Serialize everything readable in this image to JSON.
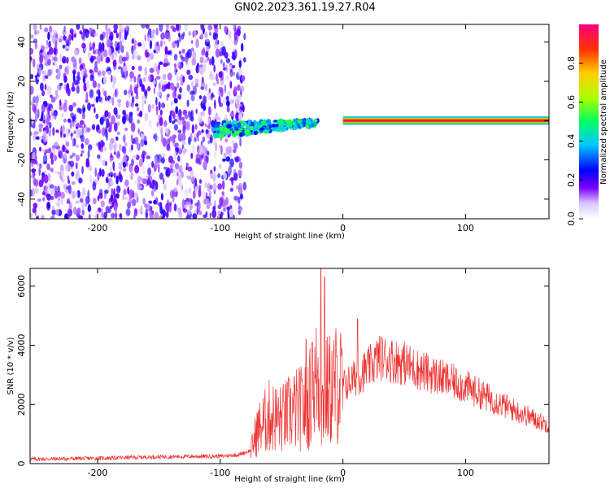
{
  "title": "GN02.2023.361.19.27.R04",
  "chart_data": [
    {
      "type": "heatmap",
      "xlabel": "Height of straight line (km)",
      "ylabel": "Frequency (Hz)",
      "xlim": [
        -255,
        168
      ],
      "ylim": [
        -50,
        49
      ],
      "xticks": [
        -200,
        -100,
        0,
        100
      ],
      "yticks": [
        -40,
        -20,
        0,
        20,
        40
      ],
      "colorbar": {
        "label": "Normalized spectral amplitude",
        "range": [
          0,
          1
        ],
        "ticks": [
          0.0,
          0.2,
          0.4,
          0.6,
          0.8
        ]
      },
      "features": [
        {
          "kind": "broadband_noise",
          "x_range": [
            -255,
            -90
          ],
          "f_range": [
            -50,
            49
          ],
          "level": 0.15
        },
        {
          "kind": "converging_tone",
          "x_range": [
            -105,
            -20
          ],
          "f_start": -5,
          "f_end": -1,
          "level": 0.35
        },
        {
          "kind": "steady_tone",
          "x_range": [
            0,
            168
          ],
          "f": 0,
          "level": 0.95
        }
      ]
    },
    {
      "type": "line",
      "xlabel": "Height of straight line (km)",
      "ylabel": "SNR (10 * v/v)",
      "xlim": [
        -255,
        168
      ],
      "ylim": [
        0,
        6600
      ],
      "xticks": [
        -200,
        -100,
        0,
        100
      ],
      "yticks": [
        0,
        2000,
        4000,
        6000
      ],
      "series": [
        {
          "color": "#ee3333",
          "envelope": {
            "x": [
              -255,
              -200,
              -150,
              -100,
              -85,
              -75,
              -70,
              -60,
              -50,
              -40,
              -30,
              -25,
              -20,
              -18,
              -15,
              -10,
              -5,
              0,
              10,
              20,
              30,
              40,
              50,
              60,
              80,
              100,
              120,
              140,
              168
            ],
            "y": [
              150,
              180,
              230,
              250,
              300,
              450,
              1100,
              1600,
              1500,
              1800,
              1900,
              2400,
              3000,
              1600,
              2400,
              2500,
              2700,
              2600,
              2900,
              3200,
              3600,
              3500,
              3400,
              3200,
              2900,
              2600,
              2200,
              1800,
              1300
            ]
          },
          "peaks": [
            {
              "x": -30,
              "y": 4200
            },
            {
              "x": -25,
              "y": 4100
            },
            {
              "x": -18,
              "y": 6600
            },
            {
              "x": -15,
              "y": 6300
            },
            {
              "x": 12,
              "y": 4900
            },
            {
              "x": 30,
              "y": 4300
            }
          ]
        }
      ]
    }
  ]
}
